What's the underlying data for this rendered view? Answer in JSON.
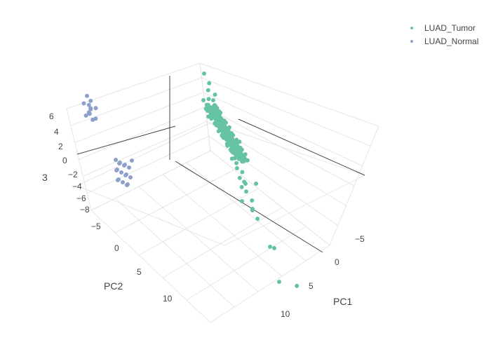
{
  "chart_data": {
    "type": "scatter3d",
    "title": "",
    "axes": {
      "x": {
        "label": "PC1",
        "ticks": [
          "−5",
          "0",
          "5",
          "10"
        ]
      },
      "y": {
        "label": "PC2",
        "ticks": [
          "−5",
          "0",
          "5",
          "10"
        ]
      },
      "z": {
        "label": "3",
        "ticks": [
          "6",
          "4",
          "2",
          "0",
          "−2",
          "−4",
          "−6",
          "−8"
        ]
      }
    },
    "legend_placement": "top-right",
    "series": [
      {
        "name": "LUAD_Tumor",
        "color": "#66c2a5",
        "points": [
          [
            -4.0,
            -1.0,
            5.5
          ],
          [
            -3.5,
            -1.2,
            4.8
          ],
          [
            -3.2,
            -0.8,
            4.2
          ],
          [
            -3.0,
            -1.5,
            3.8
          ],
          [
            -2.8,
            -0.5,
            3.5
          ],
          [
            -2.5,
            -1.0,
            3.0
          ],
          [
            -2.2,
            -1.3,
            2.5
          ],
          [
            -2.0,
            -0.7,
            2.2
          ],
          [
            -1.8,
            -1.1,
            1.8
          ],
          [
            -1.5,
            -0.9,
            1.5
          ],
          [
            -1.2,
            -1.4,
            1.0
          ],
          [
            -1.0,
            -0.6,
            0.8
          ],
          [
            -0.8,
            -1.2,
            0.5
          ],
          [
            -0.5,
            -0.8,
            0.2
          ],
          [
            -0.2,
            -1.0,
            -0.2
          ],
          [
            0.0,
            -1.3,
            -0.5
          ],
          [
            0.3,
            -0.7,
            -0.8
          ],
          [
            0.5,
            -1.1,
            -1.2
          ],
          [
            0.8,
            -0.9,
            -1.5
          ],
          [
            1.0,
            -1.4,
            -1.8
          ],
          [
            1.3,
            -0.8,
            -2.2
          ],
          [
            1.5,
            -1.2,
            -2.5
          ],
          [
            1.8,
            -0.6,
            -2.8
          ],
          [
            2.0,
            -1.0,
            -3.2
          ],
          [
            2.5,
            -1.3,
            -3.8
          ],
          [
            3.0,
            -0.9,
            -4.5
          ],
          [
            3.5,
            -1.1,
            -5.0
          ],
          [
            6.0,
            -1.0,
            -5.5
          ],
          [
            9.0,
            -1.2,
            -6.5
          ]
        ]
      },
      {
        "name": "LUAD_Normal",
        "color": "#8da0cb",
        "points": [
          [
            -7.5,
            11.0,
            -3.2
          ],
          [
            -7.2,
            10.8,
            -3.5
          ],
          [
            -7.0,
            11.2,
            -3.8
          ],
          [
            -6.8,
            10.5,
            -4.0
          ],
          [
            -7.4,
            11.5,
            -4.2
          ],
          [
            -7.1,
            10.9,
            -4.5
          ],
          [
            -6.9,
            11.3,
            -4.8
          ],
          [
            -7.3,
            10.7,
            -5.0
          ],
          [
            -7.0,
            11.1,
            -5.2
          ],
          [
            -6.7,
            10.6,
            -5.5
          ],
          [
            -7.2,
            11.4,
            -5.8
          ],
          [
            -6.9,
            10.8,
            -6.0
          ]
        ]
      }
    ]
  }
}
